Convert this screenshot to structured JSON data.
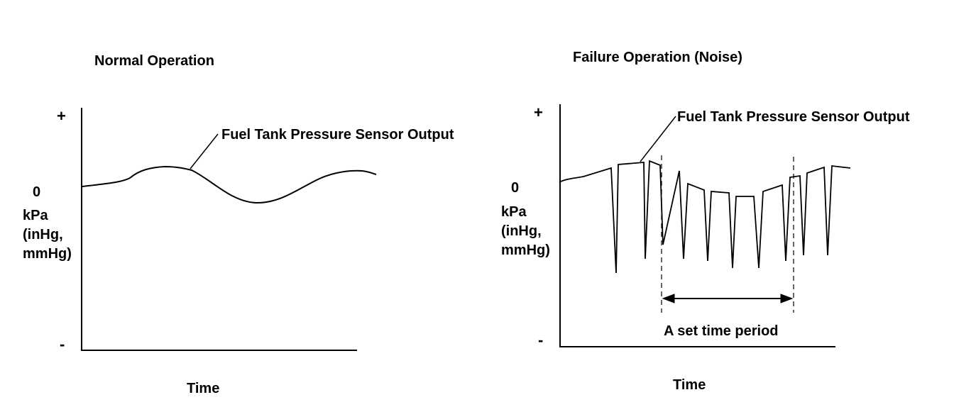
{
  "normal": {
    "title": "Normal Operation",
    "plus": "+",
    "zero": "0",
    "minus": "-",
    "unit_lines": [
      "kPa",
      "(inHg,",
      "mmHg)"
    ],
    "series_label": "Fuel Tank Pressure Sensor Output",
    "xlabel": "Time"
  },
  "failure": {
    "title": "Failure Operation (Noise)",
    "plus": "+",
    "zero": "0",
    "minus": "-",
    "unit_lines": [
      "kPa",
      "(inHg,",
      "mmHg)"
    ],
    "series_label": "Fuel Tank Pressure Sensor Output",
    "xlabel": "Time",
    "period_label": "A set time period"
  }
}
